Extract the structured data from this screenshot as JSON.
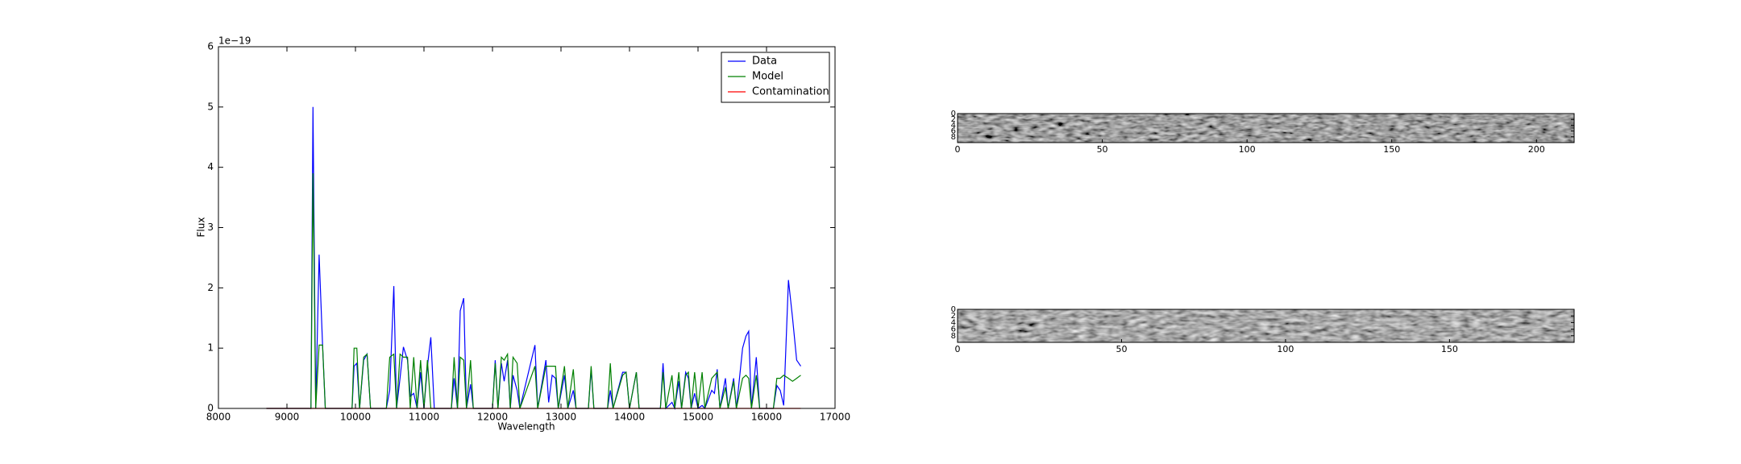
{
  "chart_data": [
    {
      "type": "line",
      "xlabel": "Wavelength",
      "ylabel": "Flux",
      "y_offset_label": "1e−19",
      "xlim": [
        8000,
        17000
      ],
      "xticks": [
        8000,
        9000,
        10000,
        11000,
        12000,
        13000,
        14000,
        15000,
        16000,
        17000
      ],
      "ylim": [
        0,
        6
      ],
      "yticks": [
        0,
        1,
        2,
        3,
        4,
        5,
        6
      ],
      "legend": "upper right",
      "x": [
        8700,
        9350,
        9380,
        9420,
        9470,
        9520,
        9560,
        9950,
        9980,
        10020,
        10060,
        10120,
        10170,
        10220,
        10450,
        10500,
        10560,
        10600,
        10650,
        10700,
        10760,
        10800,
        10850,
        10900,
        10950,
        11000,
        11050,
        11100,
        11150,
        11400,
        11440,
        11490,
        11530,
        11580,
        11620,
        11680,
        11720,
        12000,
        12040,
        12080,
        12130,
        12170,
        12220,
        12260,
        12300,
        12360,
        12400,
        12620,
        12660,
        12780,
        12820,
        12870,
        12920,
        12960,
        13050,
        13100,
        13180,
        13220,
        13400,
        13440,
        13480,
        13680,
        13720,
        13760,
        13900,
        13950,
        14000,
        14100,
        14140,
        14450,
        14490,
        14530,
        14620,
        14660,
        14720,
        14760,
        14820,
        14860,
        14900,
        14950,
        15000,
        15060,
        15100,
        15200,
        15240,
        15280,
        15320,
        15400,
        15440,
        15520,
        15560,
        15650,
        15700,
        15740,
        15780,
        15850,
        15900,
        16100,
        16150,
        16200,
        16250,
        16320,
        16380,
        16440,
        16500
      ],
      "series": [
        {
          "name": "Data",
          "color": "#0000ff",
          "values": [
            0,
            0,
            5.0,
            0,
            2.55,
            1.05,
            0,
            0,
            0.7,
            0.75,
            0,
            0.8,
            0.9,
            0,
            0,
            0.3,
            2.03,
            0,
            0.5,
            1.02,
            0.8,
            0.2,
            0.25,
            0,
            0.6,
            0,
            0.7,
            1.18,
            0,
            0,
            0.5,
            0,
            1.62,
            1.83,
            0,
            0.4,
            0,
            0,
            0.8,
            0,
            0.75,
            0.45,
            0.8,
            0,
            0.55,
            0.3,
            0,
            1.05,
            0,
            0.8,
            0.1,
            0.55,
            0.5,
            0,
            0.55,
            0,
            0.3,
            0,
            0,
            0.65,
            0,
            0,
            0.3,
            0,
            0.6,
            0.6,
            0,
            0.6,
            0,
            0,
            0.75,
            0,
            0.1,
            0,
            0.45,
            0,
            0.6,
            0.5,
            0,
            0.25,
            0,
            0.05,
            0,
            0.3,
            0.25,
            0.65,
            0,
            0.5,
            0,
            0.5,
            0,
            1.0,
            1.2,
            1.28,
            0,
            0.85,
            0,
            0,
            0.38,
            0.3,
            0.05,
            2.13,
            1.5,
            0.8,
            0.7
          ]
        },
        {
          "name": "Model",
          "color": "#008000",
          "values": [
            0,
            0,
            3.9,
            0,
            1.05,
            1.05,
            0,
            0,
            1.0,
            1.0,
            0,
            0.85,
            0.9,
            0,
            0,
            0.85,
            0.9,
            0,
            0.9,
            0.85,
            0.85,
            0,
            0.85,
            0,
            0.8,
            0,
            0.8,
            0,
            0,
            0,
            0.85,
            0,
            0.85,
            0.8,
            0,
            0.8,
            0,
            0,
            0.75,
            0,
            0.85,
            0.8,
            0.9,
            0,
            0.85,
            0.75,
            0,
            0.7,
            0,
            0.7,
            0.7,
            0.7,
            0.7,
            0,
            0.7,
            0,
            0.65,
            0,
            0,
            0.7,
            0,
            0,
            0.75,
            0,
            0.55,
            0.6,
            0,
            0.6,
            0,
            0,
            0.6,
            0,
            0.55,
            0,
            0.6,
            0,
            0.55,
            0.6,
            0,
            0.6,
            0,
            0.6,
            0,
            0.5,
            0.55,
            0.6,
            0,
            0.35,
            0,
            0.45,
            0,
            0.5,
            0.55,
            0.5,
            0,
            0.55,
            0,
            0,
            0.5,
            0.5,
            0.55,
            0.5,
            0.45,
            0.5,
            0.55
          ]
        },
        {
          "name": "Contamination",
          "color": "#ff0000",
          "values": [
            0,
            0,
            0,
            0,
            0,
            0,
            0,
            0,
            0,
            0,
            0,
            0,
            0,
            0,
            0,
            0,
            0,
            0,
            0,
            0,
            0,
            0,
            0,
            0,
            0,
            0,
            0,
            0,
            0,
            0,
            0,
            0,
            0,
            0,
            0,
            0,
            0,
            0,
            0,
            0,
            0,
            0,
            0,
            0,
            0,
            0,
            0,
            0,
            0,
            0,
            0,
            0,
            0,
            0,
            0,
            0,
            0,
            0,
            0,
            0,
            0,
            0,
            0,
            0,
            0,
            0,
            0,
            0,
            0,
            0,
            0,
            0,
            0,
            0,
            0,
            0,
            0,
            0,
            0,
            0,
            0,
            0,
            0,
            0,
            0,
            0,
            0,
            0,
            0,
            0,
            0,
            0,
            0,
            0,
            0,
            0,
            0,
            0,
            0,
            0,
            0,
            0,
            0,
            0,
            0
          ]
        }
      ]
    },
    {
      "type": "image",
      "colormap": "gray",
      "xlim": [
        0,
        213
      ],
      "xticks": [
        0,
        50,
        100,
        150,
        200
      ],
      "ylim": [
        0,
        10
      ],
      "yticks": [
        0,
        2,
        4,
        6,
        8
      ]
    },
    {
      "type": "image",
      "colormap": "gray",
      "xlim": [
        0,
        188
      ],
      "xticks": [
        0,
        50,
        100,
        150
      ],
      "ylim": [
        0,
        10
      ],
      "yticks": [
        0,
        2,
        4,
        6,
        8
      ]
    }
  ]
}
